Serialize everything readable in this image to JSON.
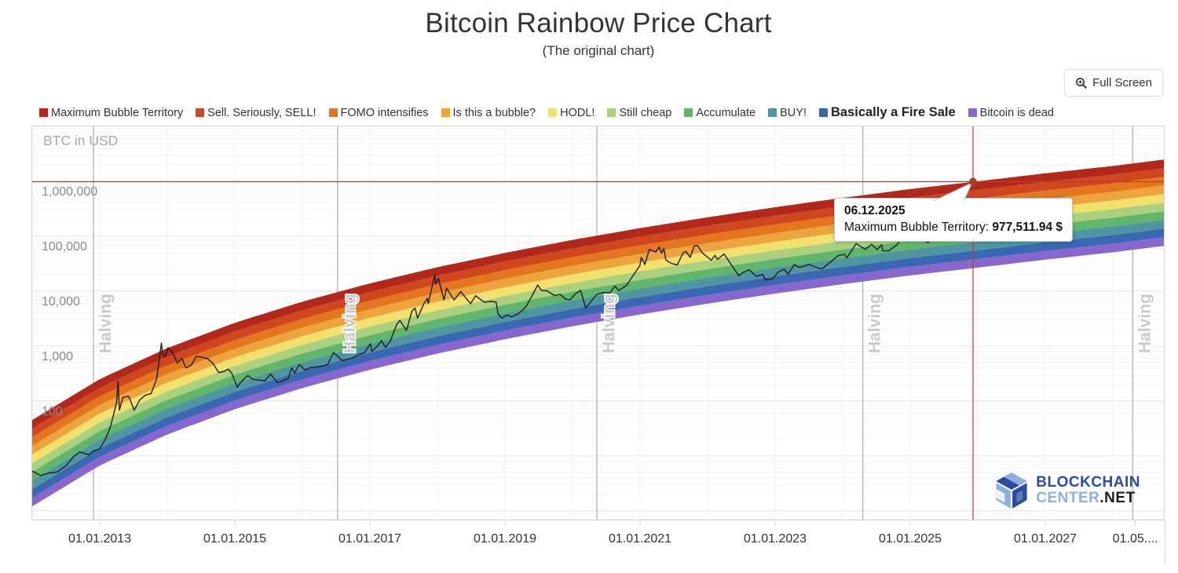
{
  "page": {
    "title": "Bitcoin Rainbow Price Chart",
    "subtitle": "(The original chart)"
  },
  "controls": {
    "full_screen_label": "Full Screen"
  },
  "legend": {
    "items": [
      {
        "label": "Maximum Bubble Territory",
        "color": "#b2291b",
        "bold": false
      },
      {
        "label": "Sell. Seriously, SELL!",
        "color": "#d0461f",
        "bold": false
      },
      {
        "label": "FOMO intensifies",
        "color": "#e4761f",
        "bold": false
      },
      {
        "label": "Is this a bubble?",
        "color": "#eda43d",
        "bold": false
      },
      {
        "label": "HODL!",
        "color": "#f2e16e",
        "bold": false
      },
      {
        "label": "Still cheap",
        "color": "#abd07e",
        "bold": false
      },
      {
        "label": "Accumulate",
        "color": "#62b56c",
        "bold": false
      },
      {
        "label": "BUY!",
        "color": "#4f96a0",
        "bold": false
      },
      {
        "label": "Basically a Fire Sale",
        "color": "#3a67b1",
        "bold": true
      },
      {
        "label": "Bitcoin is dead",
        "color": "#8766cd",
        "bold": false
      }
    ]
  },
  "chart_data": {
    "type": "line",
    "title": "Bitcoin Rainbow Price Chart",
    "subtitle": "(The original chart)",
    "y_axis": {
      "title": "BTC in USD",
      "scale": "log",
      "domain": [
        0.67,
        10000000
      ],
      "ticks": [
        {
          "label": "1,000,000",
          "value": 1000000
        },
        {
          "label": "100,000",
          "value": 100000
        },
        {
          "label": "10,000",
          "value": 10000
        },
        {
          "label": "1,000",
          "value": 1000
        },
        {
          "label": "100",
          "value": 100
        }
      ]
    },
    "x_axis": {
      "domain": [
        "2012-01-01",
        "2028-10-01"
      ],
      "ticks": [
        {
          "label": "01.01.2013",
          "date": "2013-01-01"
        },
        {
          "label": "01.01.2015",
          "date": "2015-01-01"
        },
        {
          "label": "01.01.2017",
          "date": "2017-01-01"
        },
        {
          "label": "01.01.2019",
          "date": "2019-01-01"
        },
        {
          "label": "01.01.2021",
          "date": "2021-01-01"
        },
        {
          "label": "01.01.2023",
          "date": "2023-01-01"
        },
        {
          "label": "01.01.2025",
          "date": "2025-01-01"
        },
        {
          "label": "01.01.2027",
          "date": "2027-01-01"
        },
        {
          "label": "01.05....",
          "date": "2028-05-01"
        }
      ]
    },
    "halvings": [
      {
        "label": "Halving",
        "date": "2012-11-28"
      },
      {
        "label": "Halving",
        "date": "2016-07-09"
      },
      {
        "label": "Halving",
        "date": "2020-05-11"
      },
      {
        "label": "Halving",
        "date": "2024-04-19"
      },
      {
        "label": "Halving",
        "date": "2028-04-17"
      }
    ],
    "bands": [
      {
        "name": "Maximum Bubble Territory",
        "color": "#b2291b"
      },
      {
        "name": "Sell. Seriously, SELL!",
        "color": "#d0461f"
      },
      {
        "name": "FOMO intensifies",
        "color": "#e4761f"
      },
      {
        "name": "Is this a bubble?",
        "color": "#eda43d"
      },
      {
        "name": "HODL!",
        "color": "#f2e16e"
      },
      {
        "name": "Still cheap",
        "color": "#abd07e"
      },
      {
        "name": "Accumulate",
        "color": "#62b56c"
      },
      {
        "name": "BUY!",
        "color": "#4f96a0"
      },
      {
        "name": "Basically a Fire Sale",
        "color": "#3a67b1"
      },
      {
        "name": "Bitcoin is dead",
        "color": "#8766cd"
      }
    ],
    "rainbow_top_curve": [
      [
        "2012-01-01",
        45
      ],
      [
        "2013-01-01",
        250
      ],
      [
        "2014-01-01",
        918
      ],
      [
        "2015-01-01",
        2646
      ],
      [
        "2016-01-01",
        6410
      ],
      [
        "2017-01-01",
        13800
      ],
      [
        "2018-01-01",
        27200
      ],
      [
        "2019-01-01",
        49400
      ],
      [
        "2020-01-01",
        85300
      ],
      [
        "2021-01-01",
        140000
      ],
      [
        "2022-01-01",
        220000
      ],
      [
        "2023-01-01",
        336000
      ],
      [
        "2024-01-01",
        497000
      ],
      [
        "2025-01-01",
        718000
      ],
      [
        "2026-01-01",
        995000
      ],
      [
        "2027-01-01",
        1390000
      ],
      [
        "2028-01-01",
        1890000
      ],
      [
        "2028-10-15",
        2500000
      ]
    ],
    "price_series": [
      [
        "2012-01-01",
        5.3
      ],
      [
        "2012-02-15",
        4.4
      ],
      [
        "2012-04-01",
        4.9
      ],
      [
        "2012-05-15",
        5.1
      ],
      [
        "2012-07-01",
        6.6
      ],
      [
        "2012-08-15",
        10
      ],
      [
        "2012-09-15",
        11.8
      ],
      [
        "2012-11-01",
        10.5
      ],
      [
        "2012-11-28",
        12.2
      ],
      [
        "2012-12-31",
        13.4
      ],
      [
        "2013-01-31",
        20
      ],
      [
        "2013-02-28",
        33
      ],
      [
        "2013-03-31",
        93
      ],
      [
        "2013-04-09",
        230
      ],
      [
        "2013-04-16",
        68
      ],
      [
        "2013-05-05",
        116
      ],
      [
        "2013-06-05",
        122
      ],
      [
        "2013-07-05",
        68
      ],
      [
        "2013-08-05",
        105
      ],
      [
        "2013-09-05",
        128
      ],
      [
        "2013-10-05",
        136
      ],
      [
        "2013-11-05",
        255
      ],
      [
        "2013-11-30",
        1130
      ],
      [
        "2013-12-07",
        700
      ],
      [
        "2013-12-20",
        640
      ],
      [
        "2014-01-05",
        935
      ],
      [
        "2014-01-25",
        800
      ],
      [
        "2014-02-25",
        490
      ],
      [
        "2014-03-20",
        590
      ],
      [
        "2014-04-10",
        400
      ],
      [
        "2014-05-10",
        450
      ],
      [
        "2014-06-05",
        650
      ],
      [
        "2014-07-05",
        625
      ],
      [
        "2014-08-05",
        590
      ],
      [
        "2014-09-05",
        480
      ],
      [
        "2014-10-05",
        330
      ],
      [
        "2014-11-05",
        345
      ],
      [
        "2014-11-25",
        380
      ],
      [
        "2014-12-15",
        320
      ],
      [
        "2015-01-14",
        177
      ],
      [
        "2015-02-05",
        225
      ],
      [
        "2015-03-10",
        290
      ],
      [
        "2015-04-10",
        245
      ],
      [
        "2015-05-10",
        240
      ],
      [
        "2015-06-10",
        230
      ],
      [
        "2015-07-12",
        310
      ],
      [
        "2015-08-18",
        215
      ],
      [
        "2015-09-15",
        230
      ],
      [
        "2015-10-15",
        255
      ],
      [
        "2015-11-04",
        400
      ],
      [
        "2015-11-20",
        320
      ],
      [
        "2015-12-15",
        460
      ],
      [
        "2016-01-15",
        365
      ],
      [
        "2016-02-15",
        405
      ],
      [
        "2016-03-15",
        415
      ],
      [
        "2016-04-15",
        430
      ],
      [
        "2016-05-15",
        455
      ],
      [
        "2016-06-17",
        760
      ],
      [
        "2016-07-09",
        650
      ],
      [
        "2016-08-02",
        545
      ],
      [
        "2016-09-01",
        572
      ],
      [
        "2016-10-01",
        613
      ],
      [
        "2016-11-01",
        700
      ],
      [
        "2016-12-01",
        750
      ],
      [
        "2017-01-04",
        1100
      ],
      [
        "2017-01-12",
        800
      ],
      [
        "2017-02-10",
        985
      ],
      [
        "2017-03-03",
        1250
      ],
      [
        "2017-03-25",
        940
      ],
      [
        "2017-04-20",
        1230
      ],
      [
        "2017-05-25",
        2500
      ],
      [
        "2017-06-12",
        2900
      ],
      [
        "2017-07-16",
        1900
      ],
      [
        "2017-08-15",
        4300
      ],
      [
        "2017-09-02",
        4900
      ],
      [
        "2017-09-15",
        3200
      ],
      [
        "2017-10-20",
        6000
      ],
      [
        "2017-11-08",
        7400
      ],
      [
        "2017-11-12",
        5900
      ],
      [
        "2017-12-17",
        19500
      ],
      [
        "2017-12-22",
        13500
      ],
      [
        "2018-01-06",
        17000
      ],
      [
        "2018-02-06",
        6900
      ],
      [
        "2018-02-20",
        11300
      ],
      [
        "2018-03-30",
        6900
      ],
      [
        "2018-05-05",
        9800
      ],
      [
        "2018-06-28",
        5900
      ],
      [
        "2018-07-25",
        8200
      ],
      [
        "2018-09-10",
        6300
      ],
      [
        "2018-10-20",
        6500
      ],
      [
        "2018-11-14",
        6300
      ],
      [
        "2018-11-25",
        3800
      ],
      [
        "2018-12-15",
        3200
      ],
      [
        "2019-01-10",
        3650
      ],
      [
        "2019-02-08",
        3400
      ],
      [
        "2019-03-15",
        3900
      ],
      [
        "2019-04-25",
        5300
      ],
      [
        "2019-05-30",
        8700
      ],
      [
        "2019-06-26",
        12900
      ],
      [
        "2019-07-15",
        10300
      ],
      [
        "2019-08-15",
        10100
      ],
      [
        "2019-09-25",
        8300
      ],
      [
        "2019-10-25",
        8700
      ],
      [
        "2019-11-25",
        7100
      ],
      [
        "2019-12-18",
        6900
      ],
      [
        "2020-01-15",
        8800
      ],
      [
        "2020-02-14",
        10300
      ],
      [
        "2020-03-12",
        4900
      ],
      [
        "2020-04-15",
        6800
      ],
      [
        "2020-05-11",
        8700
      ],
      [
        "2020-06-15",
        9400
      ],
      [
        "2020-07-20",
        9200
      ],
      [
        "2020-08-17",
        12300
      ],
      [
        "2020-09-08",
        10200
      ],
      [
        "2020-10-20",
        12800
      ],
      [
        "2020-11-24",
        19100
      ],
      [
        "2020-12-30",
        28900
      ],
      [
        "2021-01-08",
        41000
      ],
      [
        "2021-01-27",
        30400
      ],
      [
        "2021-02-21",
        57500
      ],
      [
        "2021-03-25",
        51300
      ],
      [
        "2021-04-13",
        63500
      ],
      [
        "2021-04-25",
        49100
      ],
      [
        "2021-05-08",
        58800
      ],
      [
        "2021-05-19",
        36700
      ],
      [
        "2021-06-21",
        31600
      ],
      [
        "2021-07-20",
        29800
      ],
      [
        "2021-08-20",
        49300
      ],
      [
        "2021-09-06",
        52600
      ],
      [
        "2021-09-28",
        41000
      ],
      [
        "2021-10-20",
        66000
      ],
      [
        "2021-11-08",
        67500
      ],
      [
        "2021-12-03",
        49400
      ],
      [
        "2022-01-21",
        36400
      ],
      [
        "2022-02-10",
        44500
      ],
      [
        "2022-02-24",
        37700
      ],
      [
        "2022-03-29",
        47400
      ],
      [
        "2022-05-11",
        29000
      ],
      [
        "2022-06-18",
        19000
      ],
      [
        "2022-07-08",
        21600
      ],
      [
        "2022-08-13",
        24400
      ],
      [
        "2022-09-21",
        18500
      ],
      [
        "2022-10-25",
        20100
      ],
      [
        "2022-11-09",
        15900
      ],
      [
        "2022-12-17",
        16700
      ],
      [
        "2023-01-21",
        22700
      ],
      [
        "2023-02-20",
        24800
      ],
      [
        "2023-03-10",
        20200
      ],
      [
        "2023-04-13",
        30400
      ],
      [
        "2023-05-12",
        26800
      ],
      [
        "2023-06-30",
        30400
      ],
      [
        "2023-08-17",
        26600
      ],
      [
        "2023-09-11",
        25200
      ],
      [
        "2023-10-23",
        33100
      ],
      [
        "2023-12-08",
        44200
      ],
      [
        "2024-01-11",
        46600
      ],
      [
        "2024-01-23",
        39900
      ],
      [
        "2024-03-13",
        73100
      ],
      [
        "2024-05-01",
        57300
      ],
      [
        "2024-06-06",
        71100
      ],
      [
        "2024-07-05",
        56700
      ],
      [
        "2024-07-29",
        69900
      ],
      [
        "2024-08-05",
        54000
      ],
      [
        "2024-09-06",
        53900
      ],
      [
        "2024-10-20",
        69000
      ],
      [
        "2024-11-22",
        99000
      ],
      [
        "2024-12-17",
        106100
      ],
      [
        "2025-01-20",
        102300
      ],
      [
        "2025-02-28",
        84400
      ],
      [
        "2025-04-08",
        76300
      ],
      [
        "2025-05-22",
        111700
      ],
      [
        "2025-06-22",
        99000
      ],
      [
        "2025-08-14",
        124000
      ],
      [
        "2025-09-01",
        108200
      ],
      [
        "2025-10-06",
        126200
      ],
      [
        "2025-11-21",
        84500
      ],
      [
        "2025-12-06",
        90500
      ]
    ],
    "crosshair": {
      "date": "2025-12-06",
      "series": "Maximum Bubble Territory",
      "value": 977511.94
    },
    "tooltip": {
      "date_label": "06.12.2025",
      "series_prefix": "Maximum Bubble Territory: ",
      "value_label": "977,511.94 $"
    }
  },
  "branding": {
    "line1": "BLOCKCHAIN",
    "line2_light": "CENTER",
    "line2_dark": ".NET"
  }
}
